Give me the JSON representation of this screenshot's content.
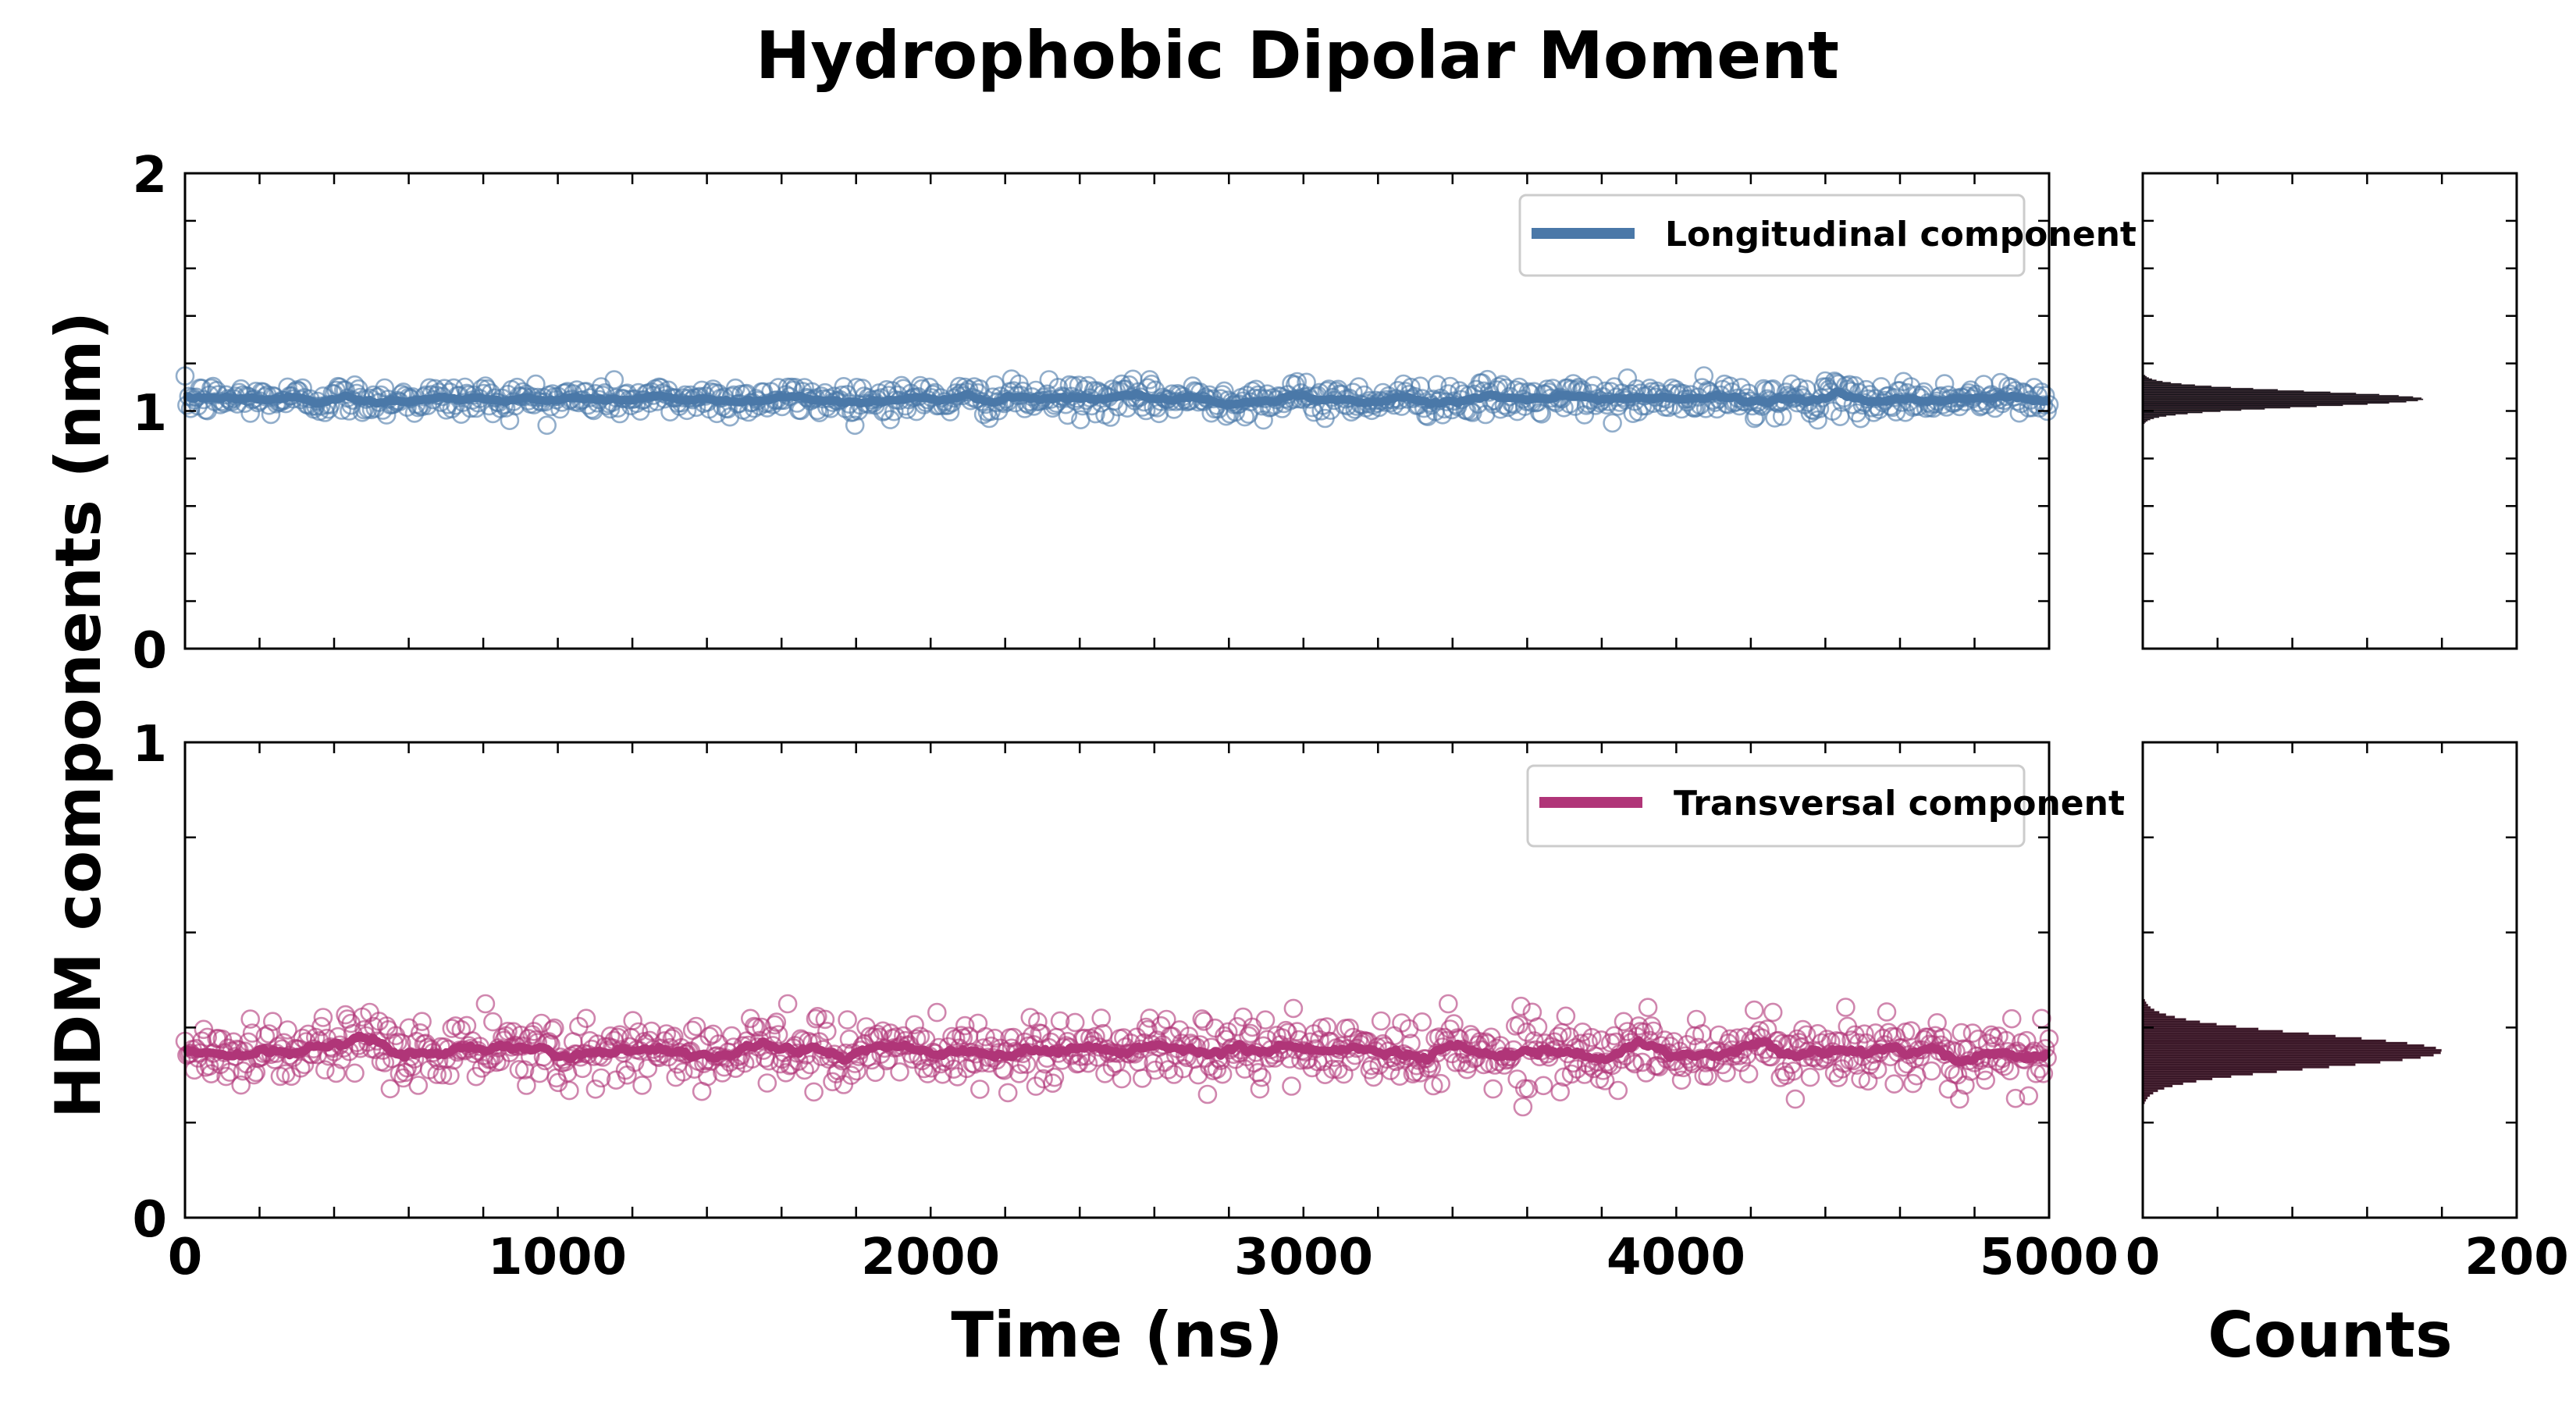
{
  "chart_data": [
    {
      "type": "scatter",
      "panel": "top-timeseries",
      "title": "Hydrophobic Dipolar Moment",
      "xlabel": "Time (ns)",
      "ylabel": "HDM components (nm)",
      "xlim": [
        0,
        5000
      ],
      "ylim": [
        0,
        2
      ],
      "yticks": [
        0,
        1,
        2
      ],
      "ytick_labels": [
        "0",
        "1",
        "2"
      ],
      "x_tick_labels_visible": false,
      "legend": {
        "position": "top-right",
        "label": "Longitudinal component"
      },
      "series": {
        "name": "Longitudinal component",
        "color": "#4a78a8",
        "n_points": 1000,
        "t_start": 0,
        "t_end": 5000,
        "mean": 1.05,
        "scatter_spread": 0.035,
        "min": 0.94,
        "max": 1.16
      }
    },
    {
      "type": "bar",
      "orientation": "horizontal",
      "panel": "top-histogram",
      "xlim": [
        0,
        200
      ],
      "ylim": [
        0,
        2
      ],
      "color": "#111418",
      "bin_width": 0.005,
      "bin_start": 0.94,
      "mean": 1.05,
      "sd": 0.032,
      "peak_count": 150
    },
    {
      "type": "scatter",
      "panel": "bottom-timeseries",
      "xlabel": "Time (ns)",
      "xlim": [
        0,
        5000
      ],
      "xticks": [
        0,
        1000,
        2000,
        3000,
        4000,
        5000
      ],
      "xtick_labels": [
        "0",
        "1000",
        "2000",
        "3000",
        "4000",
        "5000"
      ],
      "ylim": [
        0,
        1
      ],
      "yticks": [
        0,
        1
      ],
      "ytick_labels": [
        "0",
        "1"
      ],
      "legend": {
        "position": "top-right",
        "label": "Transversal component"
      },
      "series": {
        "name": "Transversal component",
        "color": "#b03578",
        "n_points": 1000,
        "t_start": 0,
        "t_end": 5000,
        "mean": 0.35,
        "scatter_spread": 0.035,
        "min": 0.2,
        "max": 0.45
      }
    },
    {
      "type": "bar",
      "orientation": "horizontal",
      "panel": "bottom-histogram",
      "xlabel": "Counts",
      "xlim": [
        0,
        200
      ],
      "xticks": [
        0,
        200
      ],
      "xtick_labels": [
        "0",
        "200"
      ],
      "ylim": [
        0,
        1
      ],
      "color": "#3a1828",
      "bin_width": 0.005,
      "bin_start": 0.22,
      "mean": 0.35,
      "sd": 0.034,
      "peak_count": 160
    }
  ]
}
